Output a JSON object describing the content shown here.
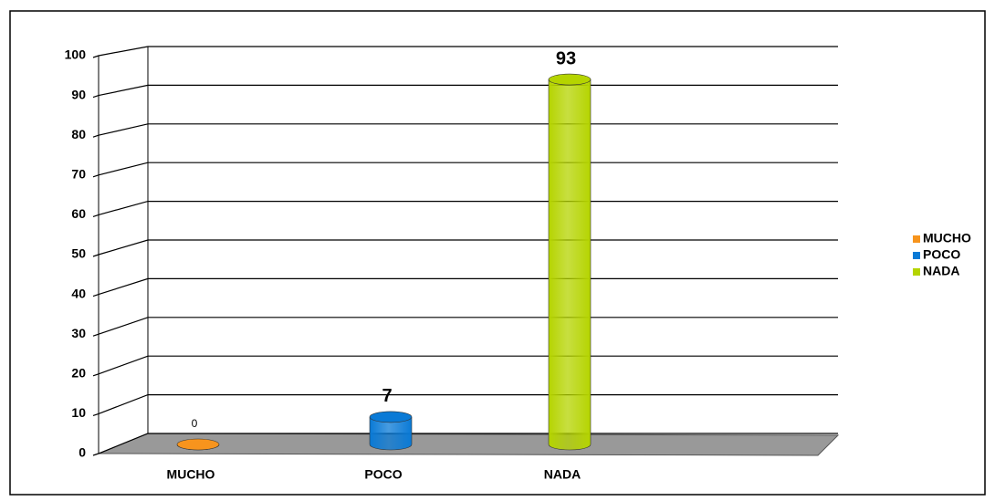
{
  "chart_data": {
    "type": "bar",
    "categories": [
      "MUCHO",
      "POCO",
      "NADA"
    ],
    "values": [
      0,
      7,
      93
    ],
    "colors": [
      "#f7941d",
      "#0a7ad6",
      "#b5d400"
    ],
    "ylim": [
      0,
      100
    ],
    "yticks": [
      0,
      10,
      20,
      30,
      40,
      50,
      60,
      70,
      80,
      90,
      100
    ],
    "grid": true,
    "legend": "right"
  }
}
